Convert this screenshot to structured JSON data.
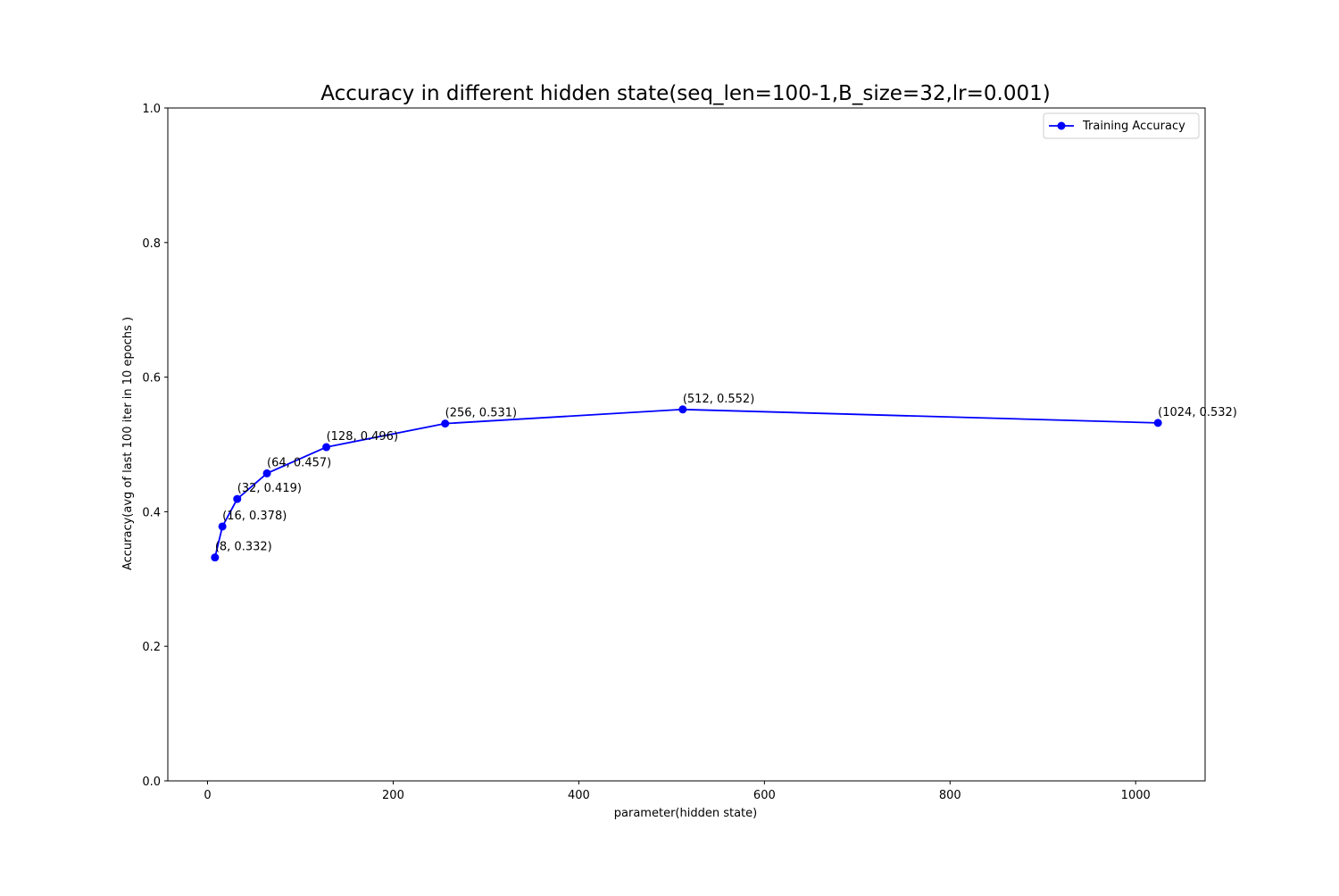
{
  "chart_data": {
    "type": "line",
    "title": "Accuracy in different hidden state(seq_len=100-1,B_size=32,lr=0.001)",
    "xlabel": "parameter(hidden state)",
    "ylabel": "Accuracy(avg of last 100 iter in 10 epochs )",
    "xlim": [
      -42.8,
      1074.8
    ],
    "ylim": [
      0.0,
      1.0
    ],
    "x_ticks": [
      0,
      200,
      400,
      600,
      800,
      1000
    ],
    "x_tick_labels": [
      "0",
      "200",
      "400",
      "600",
      "800",
      "1000"
    ],
    "y_ticks": [
      0.0,
      0.2,
      0.4,
      0.6,
      0.8,
      1.0
    ],
    "y_tick_labels": [
      "0.0",
      "0.2",
      "0.4",
      "0.6",
      "0.8",
      "1.0"
    ],
    "grid": false,
    "legend_position": "top-right",
    "series": [
      {
        "name": "Training Accuracy",
        "color": "#0000ff",
        "marker": "circle",
        "x": [
          8,
          16,
          32,
          64,
          128,
          256,
          512,
          1024
        ],
        "y": [
          0.332,
          0.378,
          0.419,
          0.457,
          0.496,
          0.531,
          0.552,
          0.532
        ]
      }
    ],
    "annotations": [
      "(8, 0.332)",
      "(16, 0.378)",
      "(32, 0.419)",
      "(64, 0.457)",
      "(128, 0.496)",
      "(256, 0.531)",
      "(512, 0.552)",
      "(1024, 0.532)"
    ]
  }
}
